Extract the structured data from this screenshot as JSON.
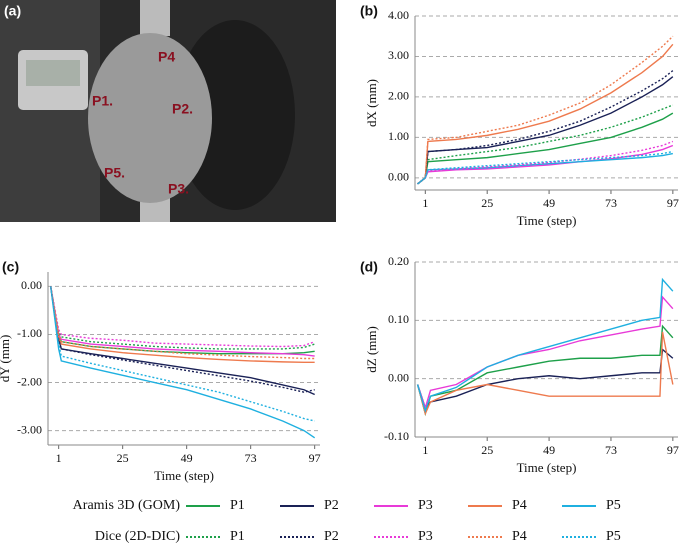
{
  "photo": {
    "panel": "(a)",
    "points": [
      "P4",
      "P1.",
      "P2.",
      "P5.",
      "P3."
    ]
  },
  "legend": {
    "row_labels": [
      "Aramis 3D (GOM)",
      "Dice (2D-DIC)"
    ]
  },
  "chart_data": [
    {
      "type": "line",
      "panel": "(b)",
      "ylabel": "dX (mm)",
      "xlabel": "Time (step)",
      "grid": true,
      "x": [
        -2,
        1,
        2,
        13,
        25,
        37,
        49,
        61,
        73,
        85,
        93,
        97
      ],
      "xlim": [
        -3,
        99
      ],
      "xticks": [
        1,
        25,
        49,
        73,
        97
      ],
      "ylim": [
        -0.3,
        4.0
      ],
      "yticks": [
        {
          "value": 0,
          "label": "0.00"
        },
        {
          "value": 1,
          "label": "1.00"
        },
        {
          "value": 2,
          "label": "2.00"
        },
        {
          "value": 3,
          "label": "3.00"
        },
        {
          "value": 4,
          "label": "4.00"
        }
      ],
      "series": [
        {
          "name": "P1",
          "color": "#1ea04a",
          "dash": "solid",
          "values": [
            -0.15,
            0,
            0.4,
            0.45,
            0.5,
            0.6,
            0.7,
            0.85,
            1.0,
            1.25,
            1.45,
            1.6
          ]
        },
        {
          "name": "P2",
          "color": "#1a2156",
          "dash": "solid",
          "values": [
            -0.15,
            0,
            0.65,
            0.7,
            0.75,
            0.9,
            1.05,
            1.3,
            1.6,
            2.0,
            2.3,
            2.5
          ]
        },
        {
          "name": "P3",
          "color": "#e83ad8",
          "dash": "solid",
          "values": [
            -0.15,
            0,
            0.15,
            0.2,
            0.22,
            0.27,
            0.32,
            0.4,
            0.47,
            0.58,
            0.7,
            0.8
          ]
        },
        {
          "name": "P4",
          "color": "#ee7a4e",
          "dash": "solid",
          "values": [
            -0.15,
            0,
            0.9,
            0.95,
            1.05,
            1.2,
            1.4,
            1.7,
            2.1,
            2.6,
            3.0,
            3.3
          ]
        },
        {
          "name": "P5",
          "color": "#1fb0e0",
          "dash": "solid",
          "values": [
            -0.15,
            0,
            0.2,
            0.22,
            0.25,
            0.3,
            0.35,
            0.4,
            0.45,
            0.5,
            0.55,
            0.6
          ]
        },
        {
          "name": "P1",
          "color": "#1ea04a",
          "dash": "dotted",
          "values": [
            -0.15,
            0,
            0.45,
            0.55,
            0.65,
            0.75,
            0.9,
            1.05,
            1.25,
            1.5,
            1.7,
            1.8
          ]
        },
        {
          "name": "P2",
          "color": "#1a2156",
          "dash": "dotted",
          "values": [
            -0.15,
            0,
            0.65,
            0.7,
            0.8,
            0.95,
            1.15,
            1.4,
            1.75,
            2.15,
            2.45,
            2.65
          ]
        },
        {
          "name": "P3",
          "color": "#e83ad8",
          "dash": "dotted",
          "values": [
            -0.15,
            0,
            0.18,
            0.22,
            0.27,
            0.32,
            0.38,
            0.46,
            0.55,
            0.68,
            0.8,
            0.9
          ]
        },
        {
          "name": "P4",
          "color": "#ee7a4e",
          "dash": "dotted",
          "values": [
            -0.15,
            0,
            0.95,
            1.0,
            1.15,
            1.3,
            1.55,
            1.85,
            2.3,
            2.85,
            3.25,
            3.5
          ]
        },
        {
          "name": "P5",
          "color": "#1fb0e0",
          "dash": "dotted",
          "values": [
            -0.15,
            0,
            0.2,
            0.25,
            0.3,
            0.35,
            0.4,
            0.45,
            0.5,
            0.55,
            0.6,
            0.65
          ]
        }
      ]
    },
    {
      "type": "line",
      "panel": "(c)",
      "ylabel": "dY (mm)",
      "xlabel": "Time (step)",
      "grid": true,
      "x": [
        -2,
        1,
        2,
        13,
        25,
        37,
        49,
        61,
        73,
        85,
        93,
        97
      ],
      "xlim": [
        -3,
        99
      ],
      "xticks": [
        1,
        25,
        49,
        73,
        97
      ],
      "ylim": [
        -3.3,
        0.3
      ],
      "yticks": [
        {
          "value": 0,
          "label": "0.00"
        },
        {
          "value": -1,
          "label": "-1.00"
        },
        {
          "value": -2,
          "label": "-2.00"
        },
        {
          "value": -3,
          "label": "-3.00"
        }
      ],
      "series": [
        {
          "name": "P1",
          "color": "#1ea04a",
          "dash": "solid",
          "values": [
            0,
            -1.0,
            -1.15,
            -1.25,
            -1.3,
            -1.35,
            -1.38,
            -1.4,
            -1.4,
            -1.4,
            -1.38,
            -1.35
          ]
        },
        {
          "name": "P2",
          "color": "#1a2156",
          "dash": "solid",
          "values": [
            0,
            -1.1,
            -1.3,
            -1.4,
            -1.5,
            -1.6,
            -1.7,
            -1.8,
            -1.9,
            -2.05,
            -2.15,
            -2.25
          ]
        },
        {
          "name": "P3",
          "color": "#e83ad8",
          "dash": "solid",
          "values": [
            0,
            -1.0,
            -1.1,
            -1.2,
            -1.25,
            -1.3,
            -1.33,
            -1.35,
            -1.38,
            -1.4,
            -1.42,
            -1.45
          ]
        },
        {
          "name": "P4",
          "color": "#ee7a4e",
          "dash": "solid",
          "values": [
            0,
            -1.05,
            -1.2,
            -1.3,
            -1.38,
            -1.43,
            -1.48,
            -1.52,
            -1.55,
            -1.57,
            -1.58,
            -1.58
          ]
        },
        {
          "name": "P5",
          "color": "#1fb0e0",
          "dash": "solid",
          "values": [
            0,
            -1.3,
            -1.55,
            -1.7,
            -1.85,
            -2.0,
            -2.15,
            -2.35,
            -2.55,
            -2.8,
            -3.0,
            -3.15
          ]
        },
        {
          "name": "P1",
          "color": "#1ea04a",
          "dash": "dotted",
          "values": [
            0,
            -0.95,
            -1.05,
            -1.15,
            -1.2,
            -1.25,
            -1.28,
            -1.3,
            -1.3,
            -1.3,
            -1.27,
            -1.2
          ]
        },
        {
          "name": "P2",
          "color": "#1a2156",
          "dash": "dotted",
          "values": [
            0,
            -1.1,
            -1.3,
            -1.42,
            -1.53,
            -1.64,
            -1.75,
            -1.86,
            -1.97,
            -2.1,
            -2.2,
            -2.15
          ]
        },
        {
          "name": "P3",
          "color": "#e83ad8",
          "dash": "dotted",
          "values": [
            0,
            -0.9,
            -1.0,
            -1.08,
            -1.12,
            -1.18,
            -1.2,
            -1.22,
            -1.24,
            -1.25,
            -1.23,
            -1.15
          ]
        },
        {
          "name": "P4",
          "color": "#ee7a4e",
          "dash": "dotted",
          "values": [
            0,
            -1.0,
            -1.15,
            -1.25,
            -1.3,
            -1.35,
            -1.4,
            -1.43,
            -1.46,
            -1.48,
            -1.5,
            -1.5
          ]
        },
        {
          "name": "P5",
          "color": "#1fb0e0",
          "dash": "dotted",
          "values": [
            0,
            -1.2,
            -1.45,
            -1.6,
            -1.75,
            -1.9,
            -2.05,
            -2.2,
            -2.4,
            -2.6,
            -2.75,
            -2.8
          ]
        }
      ]
    },
    {
      "type": "line",
      "panel": "(d)",
      "ylabel": "dZ (mm)",
      "xlabel": "Time (step)",
      "grid": true,
      "x": [
        -2,
        1,
        3,
        13,
        25,
        37,
        49,
        61,
        73,
        85,
        92,
        93,
        97
      ],
      "xlim": [
        -3,
        99
      ],
      "xticks": [
        1,
        25,
        49,
        73,
        97
      ],
      "ylim": [
        -0.1,
        0.2
      ],
      "yticks": [
        {
          "value": -0.1,
          "label": "-0.10"
        },
        {
          "value": 0,
          "label": "0.00"
        },
        {
          "value": 0.1,
          "label": "0.10"
        },
        {
          "value": 0.2,
          "label": "0.20"
        }
      ],
      "series": [
        {
          "name": "P1",
          "color": "#1ea04a",
          "dash": "solid",
          "values": [
            -0.01,
            -0.06,
            -0.03,
            -0.02,
            0.01,
            0.02,
            0.03,
            0.035,
            0.035,
            0.04,
            0.04,
            0.09,
            0.07
          ]
        },
        {
          "name": "P2",
          "color": "#1a2156",
          "dash": "solid",
          "values": [
            -0.01,
            -0.05,
            -0.04,
            -0.03,
            -0.01,
            0.0,
            0.005,
            0.0,
            0.005,
            0.01,
            0.01,
            0.05,
            0.035
          ]
        },
        {
          "name": "P3",
          "color": "#e83ad8",
          "dash": "solid",
          "values": [
            -0.01,
            -0.05,
            -0.02,
            -0.01,
            0.02,
            0.04,
            0.05,
            0.065,
            0.075,
            0.085,
            0.09,
            0.14,
            0.12
          ]
        },
        {
          "name": "P4",
          "color": "#ee7a4e",
          "dash": "solid",
          "values": [
            -0.01,
            -0.06,
            -0.04,
            -0.02,
            -0.01,
            -0.02,
            -0.03,
            -0.03,
            -0.03,
            -0.03,
            -0.03,
            0.08,
            -0.01
          ]
        },
        {
          "name": "P5",
          "color": "#1fb0e0",
          "dash": "solid",
          "values": [
            -0.01,
            -0.055,
            -0.03,
            -0.015,
            0.02,
            0.04,
            0.055,
            0.07,
            0.085,
            0.1,
            0.105,
            0.17,
            0.15
          ]
        }
      ]
    }
  ]
}
